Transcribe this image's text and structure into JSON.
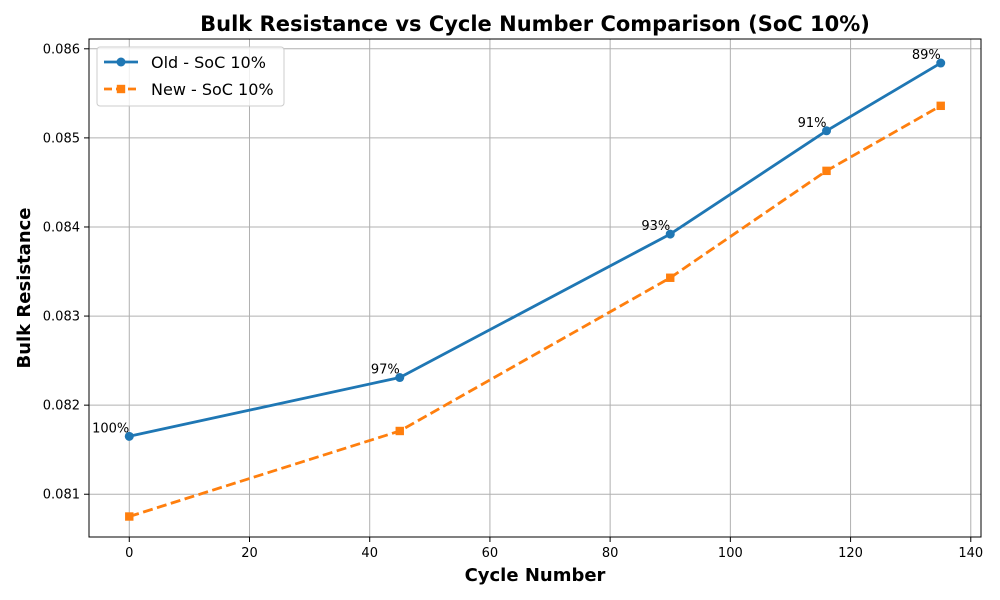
{
  "chart_data": {
    "type": "line",
    "title": "Bulk Resistance vs Cycle Number Comparison (SoC 10%)",
    "xlabel": "Cycle Number",
    "ylabel": "Bulk Resistance",
    "xlim": [
      -6.7,
      141.7
    ],
    "ylim": [
      0.08052,
      0.08611
    ],
    "xticks": [
      0,
      20,
      40,
      60,
      80,
      100,
      120,
      140
    ],
    "yticks": [
      0.081,
      0.082,
      0.083,
      0.084,
      0.085,
      0.086
    ],
    "grid": true,
    "legend_position": "top-left",
    "series": [
      {
        "name": "Old - SoC 10%",
        "color": "#1f77b4",
        "marker": "circle",
        "linestyle": "solid",
        "x": [
          0,
          45,
          90,
          116,
          135
        ],
        "y": [
          0.08165,
          0.08231,
          0.08392,
          0.08508,
          0.08584
        ]
      },
      {
        "name": "New - SoC 10%",
        "color": "#ff7f0e",
        "marker": "square",
        "linestyle": "dashed",
        "x": [
          0,
          45,
          90,
          116,
          135
        ],
        "y": [
          0.08075,
          0.08171,
          0.08343,
          0.08463,
          0.08536
        ]
      }
    ],
    "annotations": [
      {
        "text": "100%",
        "x": 0,
        "y": 0.08165
      },
      {
        "text": "97%",
        "x": 45,
        "y": 0.08231
      },
      {
        "text": "93%",
        "x": 90,
        "y": 0.08392
      },
      {
        "text": "91%",
        "x": 116,
        "y": 0.08508
      },
      {
        "text": "89%",
        "x": 135,
        "y": 0.08584
      }
    ]
  }
}
